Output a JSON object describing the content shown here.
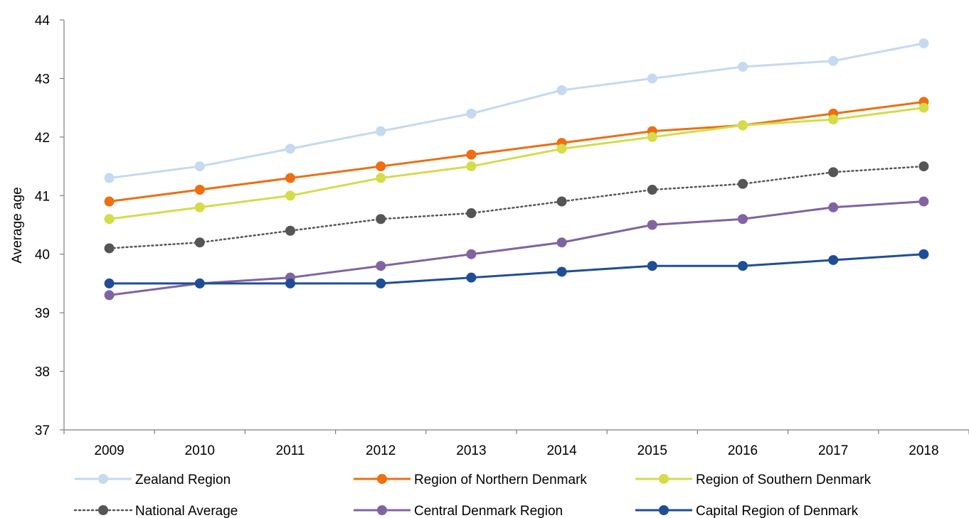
{
  "chart_data": {
    "type": "line",
    "title": "",
    "xlabel": "",
    "ylabel": "Average age",
    "ylim": [
      37,
      44
    ],
    "yticks": [
      "37",
      "38",
      "39",
      "40",
      "41",
      "42",
      "43",
      "44"
    ],
    "categories": [
      "2009",
      "2010",
      "2011",
      "2012",
      "2013",
      "2014",
      "2015",
      "2016",
      "2017",
      "2018"
    ],
    "grid": false,
    "legend_position": "bottom",
    "series": [
      {
        "name": "Zealand Region",
        "color": "#c5d9f1",
        "dashed": false,
        "values": [
          41.3,
          41.5,
          41.8,
          42.1,
          42.4,
          42.8,
          43.0,
          43.2,
          43.3,
          43.6
        ]
      },
      {
        "name": "Region of Northern Denmark",
        "color": "#ee6e11",
        "dashed": false,
        "values": [
          40.9,
          41.1,
          41.3,
          41.5,
          41.7,
          41.9,
          42.1,
          42.2,
          42.4,
          42.6
        ]
      },
      {
        "name": "Region of Southern Denmark",
        "color": "#d4dc4a",
        "dashed": false,
        "values": [
          40.6,
          40.8,
          41.0,
          41.3,
          41.5,
          41.8,
          42.0,
          42.2,
          42.3,
          42.5
        ]
      },
      {
        "name": "National Average",
        "color": "#555555",
        "dashed": true,
        "values": [
          40.1,
          40.2,
          40.4,
          40.6,
          40.7,
          40.9,
          41.1,
          41.2,
          41.4,
          41.5
        ]
      },
      {
        "name": "Central Denmark Region",
        "color": "#8064a2",
        "dashed": false,
        "values": [
          39.3,
          39.5,
          39.6,
          39.8,
          40.0,
          40.2,
          40.5,
          40.6,
          40.8,
          40.9
        ]
      },
      {
        "name": "Capital Region of Denmark",
        "color": "#1f4e96",
        "dashed": false,
        "values": [
          39.5,
          39.5,
          39.5,
          39.5,
          39.6,
          39.7,
          39.8,
          39.8,
          39.9,
          40.0
        ]
      }
    ]
  }
}
